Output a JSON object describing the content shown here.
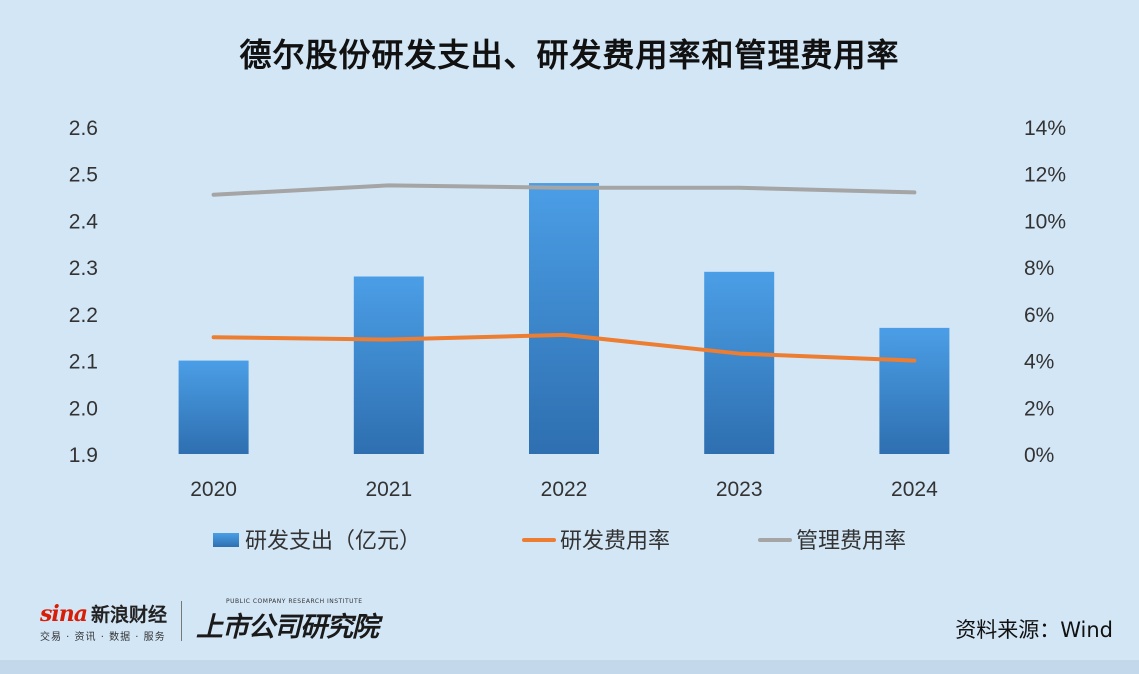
{
  "title": "德尔股份研发支出、研发费用率和管理费用率",
  "source": "资料来源：Wind",
  "brand": {
    "sina_word": "sina",
    "sina_name": "新浪财经",
    "sina_tagline": "交易 · 资讯 · 数据 · 服务",
    "institute_en": "PUBLIC COMPANY RESEARCH INSTITUTE",
    "institute_cn": "上市公司研究院"
  },
  "chart_data": {
    "type": "bar",
    "categories": [
      "2020",
      "2021",
      "2022",
      "2023",
      "2024"
    ],
    "series": [
      {
        "name": "研发支出（亿元）",
        "type": "bar",
        "axis": "left",
        "color": "#3f8fd6",
        "values": [
          2.1,
          2.28,
          2.48,
          2.29,
          2.17
        ]
      },
      {
        "name": "研发费用率",
        "type": "line",
        "axis": "right",
        "color": "#ed7d31",
        "values": [
          5.0,
          4.9,
          5.1,
          4.3,
          4.0
        ]
      },
      {
        "name": "管理费用率",
        "type": "line",
        "axis": "right",
        "color": "#a5a5a5",
        "values": [
          11.1,
          11.5,
          11.4,
          11.4,
          11.2
        ]
      }
    ],
    "y_left": {
      "min": 1.9,
      "max": 2.6,
      "ticks": [
        "1.9",
        "2.0",
        "2.1",
        "2.2",
        "2.3",
        "2.4",
        "2.5",
        "2.6"
      ]
    },
    "y_right": {
      "min": 0,
      "max": 14,
      "ticks": [
        "0%",
        "2%",
        "4%",
        "6%",
        "8%",
        "10%",
        "12%",
        "14%"
      ]
    },
    "grid": false,
    "legend_position": "bottom"
  }
}
